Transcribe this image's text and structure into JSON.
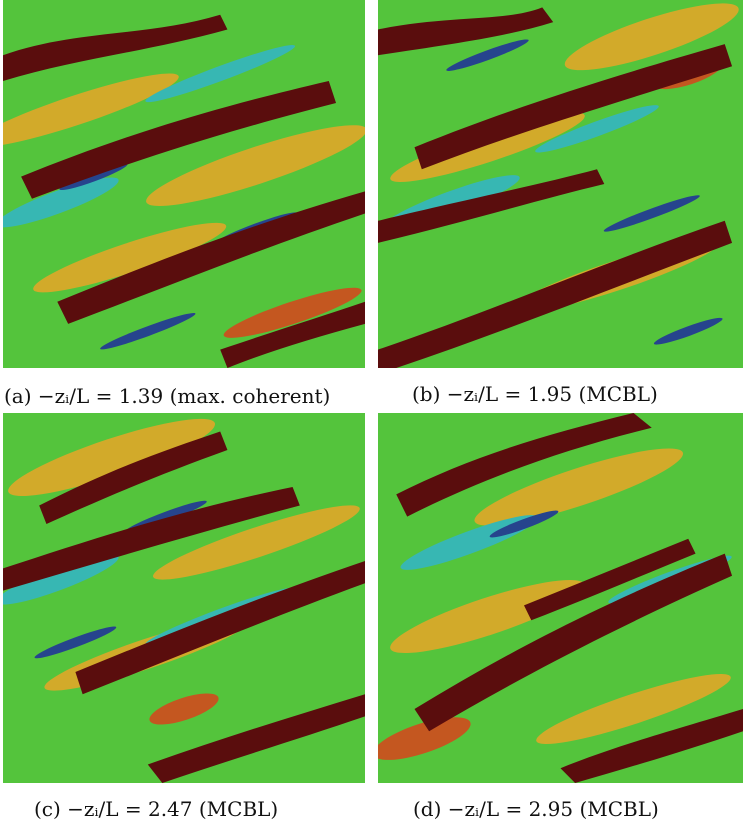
{
  "figure": {
    "panels": [
      {
        "id": "a",
        "caption": "(a)  −zᵢ/L = 1.39 (max. coherent)"
      },
      {
        "id": "b",
        "caption": "(b)  −zᵢ/L = 1.95 (MCBL)"
      },
      {
        "id": "c",
        "caption": "(c)  −zᵢ/L = 2.47 (MCBL)"
      },
      {
        "id": "d",
        "caption": "(d)  −zᵢ/L = 2.95 (MCBL)"
      }
    ]
  },
  "colors": {
    "background_field": "#54c43c",
    "warm_anomaly": "#e8a628",
    "hot_anomaly": "#d8441c",
    "cool_anomaly": "#33b5c8",
    "cold_anomaly": "#1e2e9c",
    "isosurface_structures": "#5a0d0d"
  }
}
